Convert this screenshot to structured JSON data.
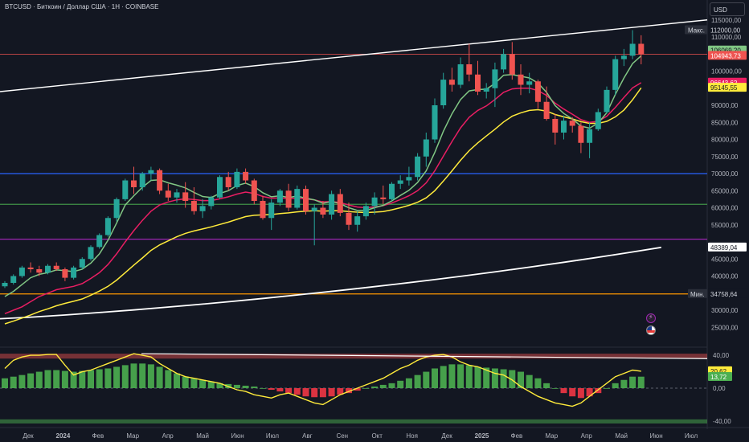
{
  "header": {
    "title": "BTCUSD · Биткоин / Доллар США · 1H · COINBASE",
    "currency": "USD"
  },
  "price_axis": {
    "ticks": [
      "115000,00",
      "110000,00",
      "100000,00",
      "90000,00",
      "85000,00",
      "80000,00",
      "75000,00",
      "70000,00",
      "65000,00",
      "60000,00",
      "55000,00",
      "45000,00",
      "40000,00",
      "35000,00",
      "30000,00",
      "25000,00"
    ],
    "max_tag": "Макс.",
    "max_value": "112000,00",
    "min_tag": "Мин.",
    "min_value": "34758,64",
    "last_price": "104943,73",
    "ema_green_value": "106069,20",
    "ema_red_value": "96643,62",
    "ema_yellow_value": "95145,55",
    "level_label": "48389,04"
  },
  "oscillator_axis": {
    "ticks": [
      "40,00",
      "0,00",
      "-40,00"
    ],
    "value_yellow": "20,62",
    "value_green": "13,72"
  },
  "time_axis": {
    "labels": [
      "Дек",
      "2024",
      "Фев",
      "Мар",
      "Апр",
      "Май",
      "Июн",
      "Июл",
      "Авг",
      "Сен",
      "Окт",
      "Ноя",
      "Дек",
      "2025",
      "Фев",
      "Мар",
      "Апр",
      "Май",
      "Июн",
      "Июл"
    ]
  },
  "colors": {
    "up": "#26a69a",
    "down": "#ef5350",
    "ema_green": "#81c784",
    "ema_red": "#e91e63",
    "ema_yellow": "#ffeb3b",
    "level_blue": "#2962ff",
    "level_purple": "#9c27b0",
    "level_orange": "#ff9800",
    "level_green": "#4caf50"
  },
  "icons": [
    "bolt-icon",
    "flag-icon"
  ],
  "chart_data": {
    "type": "candlestick",
    "title": "",
    "ylim": [
      22000,
      118000
    ],
    "horizontal_levels": [
      {
        "name": "blue",
        "y": 70000
      },
      {
        "name": "green",
        "y": 61000
      },
      {
        "name": "purple",
        "y": 50800
      },
      {
        "name": "orange",
        "y": 34758.64
      },
      {
        "name": "red",
        "y": 104943.73
      }
    ],
    "candles": [
      [
        37000,
        38500,
        36500,
        38000
      ],
      [
        38000,
        40500,
        37500,
        40000
      ],
      [
        40000,
        43000,
        39500,
        42500
      ],
      [
        42500,
        44000,
        41000,
        42000
      ],
      [
        42000,
        43000,
        40000,
        41000
      ],
      [
        41000,
        43500,
        40500,
        43000
      ],
      [
        43000,
        44000,
        41500,
        42000
      ],
      [
        42000,
        42500,
        38500,
        39500
      ],
      [
        39500,
        43000,
        39000,
        42500
      ],
      [
        42500,
        45500,
        42000,
        45000
      ],
      [
        45000,
        49000,
        44500,
        48500
      ],
      [
        48500,
        52500,
        48000,
        52000
      ],
      [
        52000,
        57500,
        51500,
        57000
      ],
      [
        57000,
        63000,
        56000,
        62500
      ],
      [
        62500,
        68500,
        62000,
        68000
      ],
      [
        68000,
        72000,
        64000,
        66000
      ],
      [
        66000,
        70500,
        65000,
        70000
      ],
      [
        70000,
        72000,
        68000,
        71000
      ],
      [
        71000,
        71500,
        64000,
        65000
      ],
      [
        65000,
        67000,
        62000,
        63000
      ],
      [
        63000,
        65500,
        61500,
        64500
      ],
      [
        64500,
        67500,
        60000,
        62000
      ],
      [
        62000,
        66000,
        58000,
        59000
      ],
      [
        59000,
        62500,
        57000,
        60500
      ],
      [
        60500,
        63500,
        59500,
        63000
      ],
      [
        63000,
        69500,
        62500,
        69000
      ],
      [
        69000,
        70500,
        65000,
        66000
      ],
      [
        66000,
        71500,
        65500,
        70500
      ],
      [
        70500,
        71500,
        67000,
        68000
      ],
      [
        68000,
        68500,
        61000,
        62000
      ],
      [
        62000,
        63500,
        56500,
        57000
      ],
      [
        57000,
        62500,
        53500,
        61500
      ],
      [
        61500,
        65500,
        60500,
        65000
      ],
      [
        65000,
        67000,
        59000,
        60000
      ],
      [
        60000,
        66500,
        59500,
        65500
      ],
      [
        65500,
        66500,
        58000,
        59000
      ],
      [
        59000,
        61000,
        49000,
        60000
      ],
      [
        60000,
        62000,
        57000,
        58000
      ],
      [
        58000,
        65000,
        56500,
        64000
      ],
      [
        64000,
        65500,
        57500,
        58500
      ],
      [
        58500,
        61500,
        53500,
        55000
      ],
      [
        55000,
        59000,
        53000,
        57500
      ],
      [
        57500,
        61500,
        56500,
        60500
      ],
      [
        60500,
        64500,
        58000,
        63000
      ],
      [
        63000,
        66500,
        61000,
        62500
      ],
      [
        62500,
        67500,
        62000,
        67000
      ],
      [
        67000,
        69500,
        65500,
        68000
      ],
      [
        68000,
        72000,
        66500,
        69000
      ],
      [
        69000,
        76000,
        68000,
        75000
      ],
      [
        75000,
        82000,
        72000,
        80000
      ],
      [
        80000,
        92000,
        79000,
        90000
      ],
      [
        90000,
        99500,
        89000,
        97500
      ],
      [
        97500,
        101000,
        94000,
        96000
      ],
      [
        96000,
        104000,
        95000,
        102000
      ],
      [
        102000,
        108000,
        97000,
        99000
      ],
      [
        99000,
        103000,
        93000,
        94000
      ],
      [
        94000,
        96500,
        92000,
        95000
      ],
      [
        95000,
        102500,
        89500,
        100500
      ],
      [
        100500,
        106500,
        99500,
        105000
      ],
      [
        105000,
        108500,
        97500,
        99000
      ],
      [
        99000,
        102000,
        93000,
        96000
      ],
      [
        96000,
        99500,
        93500,
        97000
      ],
      [
        97000,
        97500,
        89000,
        91000
      ],
      [
        91000,
        95500,
        85500,
        86000
      ],
      [
        86000,
        87500,
        78500,
        82000
      ],
      [
        82000,
        87000,
        80000,
        85500
      ],
      [
        85500,
        86500,
        82000,
        84000
      ],
      [
        84000,
        85000,
        76000,
        79000
      ],
      [
        79000,
        85000,
        74500,
        83000
      ],
      [
        83000,
        89000,
        82500,
        88000
      ],
      [
        88000,
        95500,
        87500,
        94500
      ],
      [
        94500,
        104500,
        93000,
        103500
      ],
      [
        103500,
        106500,
        101500,
        104500
      ],
      [
        104500,
        112000,
        103500,
        108000
      ],
      [
        108000,
        110500,
        102000,
        104900
      ]
    ],
    "ema_fast": [
      34000,
      35500,
      37500,
      39500,
      40500,
      41000,
      41800,
      41600,
      41300,
      42000,
      43800,
      46500,
      50500,
      55500,
      60800,
      63500,
      66000,
      68000,
      68200,
      67300,
      66600,
      65800,
      64500,
      63300,
      63000,
      64200,
      65000,
      66500,
      67200,
      66200,
      64400,
      63200,
      63500,
      63000,
      63400,
      62800,
      62300,
      61300,
      61800,
      61200,
      60000,
      59200,
      59200,
      60000,
      60700,
      62000,
      63600,
      65100,
      67400,
      70800,
      76200,
      82400,
      87500,
      91700,
      94200,
      94600,
      94700,
      96400,
      98800,
      99000,
      98500,
      98000,
      96500,
      93800,
      89900,
      87600,
      86000,
      83900,
      83300,
      84800,
      87800,
      93200,
      98000,
      102200,
      104500
    ],
    "ema_mid": [
      29000,
      30000,
      31000,
      32500,
      34000,
      35000,
      36000,
      36500,
      37000,
      37800,
      39300,
      41000,
      43400,
      46500,
      50000,
      53300,
      56300,
      59000,
      60800,
      61700,
      62300,
      62600,
      62400,
      62100,
      62100,
      62600,
      63200,
      64000,
      64600,
      64200,
      63300,
      62800,
      62900,
      62700,
      62800,
      62600,
      62300,
      61700,
      61800,
      61500,
      60800,
      60200,
      60000,
      60200,
      60600,
      61400,
      62400,
      63500,
      65000,
      67300,
      70800,
      75100,
      79400,
      83400,
      86500,
      88500,
      89800,
      91700,
      93800,
      94800,
      95000,
      95000,
      94300,
      92900,
      90600,
      88900,
      87400,
      85800,
      85000,
      85300,
      86800,
      89400,
      92300,
      95100,
      96600
    ],
    "ema_slow": [
      26000,
      26800,
      27700,
      28600,
      29600,
      30400,
      31300,
      32000,
      32600,
      33300,
      34400,
      35600,
      37000,
      38800,
      41000,
      43200,
      45300,
      47500,
      49100,
      50300,
      51500,
      52500,
      53200,
      53800,
      54400,
      55100,
      55800,
      56600,
      57400,
      57800,
      57900,
      58000,
      58300,
      58500,
      58800,
      59000,
      59100,
      59000,
      59100,
      59100,
      58900,
      58700,
      58600,
      58700,
      58900,
      59400,
      60000,
      60700,
      61600,
      62900,
      65000,
      67800,
      70800,
      73900,
      76700,
      79000,
      81000,
      83000,
      85100,
      86800,
      87800,
      88500,
      88700,
      88300,
      87300,
      86600,
      86000,
      85200,
      84700,
      84700,
      85300,
      86600,
      88600,
      91600,
      95100
    ],
    "channel_upper_line": {
      "x": [
        0,
        1
      ],
      "y": [
        94000,
        115000
      ]
    },
    "channel_lower_line": {
      "x": [
        0,
        0.935
      ],
      "y": [
        27500,
        48389.04
      ]
    },
    "oscillator": {
      "ylim": [
        -46,
        46
      ],
      "zero_line": 0,
      "bands": [
        {
          "from": 36,
          "to": 42
        },
        {
          "from": -43,
          "to": -38
        }
      ],
      "histogram": [
        12,
        14,
        16,
        18,
        20,
        22,
        22,
        21,
        20,
        21,
        22,
        23,
        24,
        26,
        28,
        30,
        30,
        29,
        26,
        22,
        18,
        14,
        12,
        10,
        8,
        6,
        5,
        4,
        3,
        2,
        0,
        -2,
        -4,
        -6,
        -8,
        -10,
        -11,
        -11,
        -10,
        -8,
        -6,
        -3,
        0,
        2,
        4,
        6,
        9,
        12,
        16,
        20,
        24,
        27,
        29,
        29,
        28,
        26,
        25,
        24,
        23,
        22,
        20,
        16,
        12,
        6,
        0,
        -6,
        -10,
        -12,
        -10,
        -6,
        0,
        6,
        10,
        14,
        14
      ],
      "oscillator_line": [
        24,
        34,
        38,
        40,
        40,
        41,
        41,
        28,
        16,
        20,
        22,
        26,
        30,
        34,
        38,
        42,
        40,
        38,
        30,
        24,
        18,
        14,
        12,
        10,
        8,
        6,
        2,
        -2,
        -4,
        -8,
        -10,
        -12,
        -8,
        -6,
        -10,
        -14,
        -18,
        -20,
        -14,
        -8,
        -4,
        0,
        4,
        8,
        12,
        18,
        24,
        28,
        34,
        38,
        40,
        41,
        38,
        32,
        28,
        26,
        22,
        18,
        16,
        10,
        2,
        -4,
        -10,
        -14,
        -18,
        -20,
        -22,
        -18,
        -10,
        -2,
        6,
        14,
        18,
        22,
        20.62
      ],
      "divergence_line": {
        "x": [
          0.2,
          1
        ],
        "y": [
          42,
          36
        ]
      }
    }
  }
}
